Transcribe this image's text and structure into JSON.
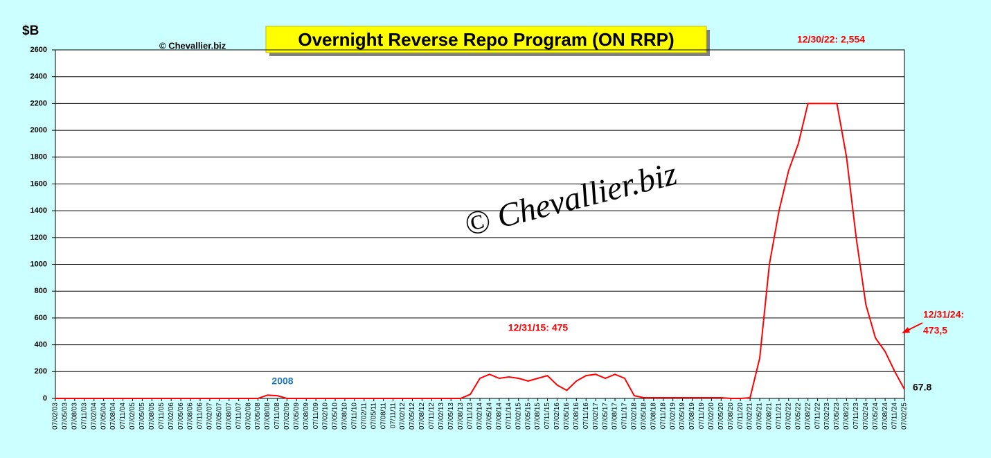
{
  "chart_data": {
    "type": "line",
    "title": "Overnight Reverse Repo Program (ON RRP)",
    "y_label": "$B",
    "source": "© Chevallier.biz",
    "watermark": "© Chevallier.biz",
    "annotations": [
      "12/30/22: 2,554",
      "12/31/15: 475",
      "12/31/24:",
      "473,5",
      "67.8",
      "2008"
    ],
    "categories": [
      "07/02/03",
      "07/05/03",
      "07/08/03",
      "07/11/03",
      "07/02/04",
      "07/05/04",
      "07/08/04",
      "07/11/04",
      "07/02/05",
      "07/05/05",
      "07/08/05",
      "07/11/05",
      "07/02/06",
      "07/05/06",
      "07/08/06",
      "07/11/06",
      "07/02/07",
      "07/05/07",
      "07/08/07",
      "07/11/07",
      "07/02/08",
      "07/05/08",
      "07/08/08",
      "07/11/08",
      "07/02/09",
      "07/05/09",
      "07/08/09",
      "07/11/09",
      "07/02/10",
      "07/05/10",
      "07/08/10",
      "07/11/10",
      "07/02/11",
      "07/05/11",
      "07/08/11",
      "07/11/11",
      "07/02/12",
      "07/05/12",
      "07/08/12",
      "07/11/12",
      "07/02/13",
      "07/05/13",
      "07/08/13",
      "07/11/13",
      "07/02/14",
      "07/05/14",
      "07/08/14",
      "07/11/14",
      "07/02/15",
      "07/05/15",
      "07/08/15",
      "07/11/15",
      "07/02/16",
      "07/05/16",
      "07/08/16",
      "07/11/16",
      "07/02/17",
      "07/05/17",
      "07/08/17",
      "07/11/17",
      "07/02/18",
      "07/05/18",
      "07/08/18",
      "07/11/18",
      "07/02/19",
      "07/05/19",
      "07/08/19",
      "07/11/19",
      "07/02/20",
      "07/05/20",
      "07/08/20",
      "07/11/20",
      "07/02/21",
      "07/05/21",
      "07/08/21",
      "07/11/21",
      "07/02/22",
      "07/05/22",
      "07/08/22",
      "07/11/22",
      "07/02/23",
      "07/05/23",
      "07/08/23",
      "07/11/23",
      "07/02/24",
      "07/05/24",
      "07/08/24",
      "07/11/24",
      "07/02/25"
    ],
    "values": [
      0,
      0,
      0,
      0,
      0,
      0,
      0,
      0,
      0,
      0,
      0,
      0,
      0,
      0,
      0,
      0,
      0,
      0,
      0,
      0,
      0,
      0,
      25,
      20,
      0,
      0,
      0,
      0,
      0,
      0,
      0,
      0,
      0,
      0,
      0,
      0,
      0,
      0,
      0,
      0,
      0,
      0,
      0,
      30,
      150,
      180,
      150,
      160,
      150,
      130,
      150,
      170,
      100,
      60,
      130,
      170,
      180,
      150,
      180,
      150,
      20,
      5,
      5,
      5,
      5,
      5,
      5,
      5,
      5,
      5,
      0,
      0,
      5,
      300,
      1000,
      1400,
      1700,
      1900,
      2200,
      2200,
      2200,
      2200,
      1800,
      1200,
      700,
      450,
      350,
      200,
      67.8
    ],
    "color": "#ff0000",
    "ylim": [
      0,
      2600
    ],
    "yticks": [
      0,
      200,
      400,
      600,
      800,
      1000,
      1200,
      1400,
      1600,
      1800,
      2000,
      2200,
      2400,
      2600
    ],
    "grid": true
  }
}
